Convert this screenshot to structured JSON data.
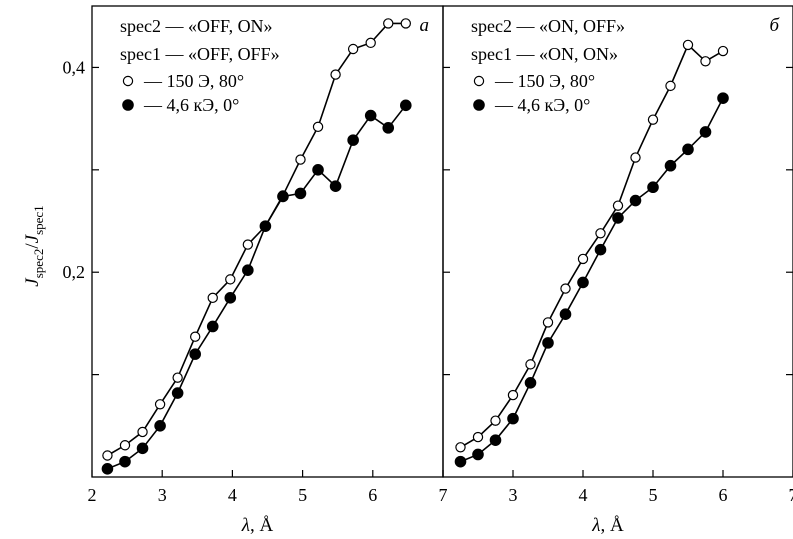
{
  "chart_data": [
    {
      "type": "line",
      "panel_label": "a",
      "xlabel": "λ, Å",
      "ylabel_main": "J",
      "ylabel_sub_num": "spec2",
      "ylabel_sub_den": "spec1",
      "xlim": [
        2,
        7
      ],
      "ylim": [
        0,
        0.46
      ],
      "x_ticks": [
        2,
        3,
        4,
        5,
        6,
        7
      ],
      "x_tick_labels": [
        "2",
        "3",
        "4",
        "5",
        "6",
        "7"
      ],
      "y_ticks": [
        0.1,
        0.2,
        0.3,
        0.4
      ],
      "y_tick_labels": [
        "",
        "0,2",
        "",
        "0,4"
      ],
      "legend_text": [
        "spec2 — «OFF, ON»",
        "spec1 — «OFF, OFF»"
      ],
      "series": [
        {
          "name": "— 150 Э, 80°",
          "marker": "open-circle",
          "x": [
            2.22,
            2.47,
            2.72,
            2.97,
            3.22,
            3.47,
            3.72,
            3.97,
            4.22,
            4.47,
            4.72,
            4.97,
            5.22,
            5.47,
            5.72,
            5.97,
            6.22,
            6.47
          ],
          "y": [
            0.021,
            0.031,
            0.044,
            0.071,
            0.097,
            0.137,
            0.175,
            0.193,
            0.227,
            0.245,
            0.275,
            0.31,
            0.342,
            0.393,
            0.418,
            0.424,
            0.443,
            0.443
          ]
        },
        {
          "name": "— 4,6 кЭ, 0°",
          "marker": "filled-circle",
          "x": [
            2.22,
            2.47,
            2.72,
            2.97,
            3.22,
            3.47,
            3.72,
            3.97,
            4.22,
            4.47,
            4.72,
            4.97,
            5.22,
            5.47,
            5.72,
            5.97,
            6.22,
            6.47
          ],
          "y": [
            0.008,
            0.015,
            0.028,
            0.05,
            0.082,
            0.12,
            0.147,
            0.175,
            0.202,
            0.245,
            0.274,
            0.277,
            0.3,
            0.284,
            0.329,
            0.353,
            0.341,
            0.363
          ]
        }
      ]
    },
    {
      "type": "line",
      "panel_label": "б",
      "xlabel": "λ, Å",
      "xlim": [
        2,
        7
      ],
      "ylim": [
        0,
        0.46
      ],
      "x_ticks": [
        2,
        3,
        4,
        5,
        6,
        7
      ],
      "x_tick_labels": [
        "",
        "3",
        "4",
        "5",
        "6",
        "7"
      ],
      "y_ticks": [
        0.1,
        0.2,
        0.3,
        0.4
      ],
      "legend_text": [
        "spec2 — «ON, OFF»",
        "spec1 — «ON, ON»"
      ],
      "series": [
        {
          "name": "— 150 Э, 80°",
          "marker": "open-circle",
          "x": [
            2.25,
            2.5,
            2.75,
            3.0,
            3.25,
            3.5,
            3.75,
            4.0,
            4.25,
            4.5,
            4.75,
            5.0,
            5.25,
            5.5,
            5.75,
            6.0
          ],
          "y": [
            0.029,
            0.039,
            0.055,
            0.08,
            0.11,
            0.151,
            0.184,
            0.213,
            0.238,
            0.265,
            0.312,
            0.349,
            0.382,
            0.422,
            0.406,
            0.416
          ]
        },
        {
          "name": "— 4,6 кЭ, 0°",
          "marker": "filled-circle",
          "x": [
            2.25,
            2.5,
            2.75,
            3.0,
            3.25,
            3.5,
            3.75,
            4.0,
            4.25,
            4.5,
            4.75,
            5.0,
            5.25,
            5.5,
            5.75,
            6.0
          ],
          "y": [
            0.015,
            0.022,
            0.036,
            0.057,
            0.092,
            0.131,
            0.159,
            0.19,
            0.222,
            0.253,
            0.27,
            0.283,
            0.304,
            0.32,
            0.337,
            0.37
          ]
        }
      ]
    }
  ]
}
